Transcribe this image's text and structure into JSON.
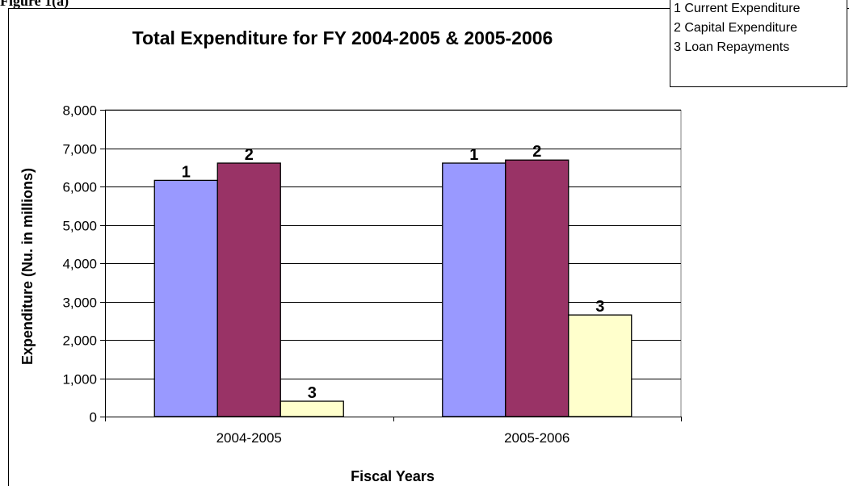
{
  "partial_caption": "Figure 1(a)",
  "chart_data": {
    "type": "bar",
    "title": "Total Expenditure for FY 2004-2005 & 2005-2006",
    "xlabel": "Fiscal Years",
    "ylabel": "Expenditure (Nu. in millions)",
    "categories": [
      "2004-2005",
      "2005-2006"
    ],
    "ylim": [
      0,
      8000
    ],
    "yticks": [
      "0",
      "1,000",
      "2,000",
      "3,000",
      "4,000",
      "5,000",
      "6,000",
      "7,000",
      "8,000"
    ],
    "grid": true,
    "legend_position": "top-right",
    "series": [
      {
        "name": "1 Current Expenditure",
        "label": "1",
        "color": "#9999ff",
        "values": [
          6160,
          6610
        ]
      },
      {
        "name": "2 Capital Expenditure",
        "label": "2",
        "color": "#993366",
        "values": [
          6610,
          6690
        ]
      },
      {
        "name": "3 Loan Repayments",
        "label": "3",
        "color": "#ffffcc",
        "values": [
          400,
          2650
        ]
      }
    ]
  }
}
